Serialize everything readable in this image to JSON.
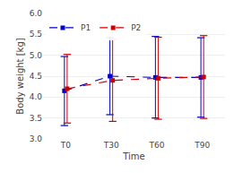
{
  "chart_data": {
    "type": "line",
    "xlabel": "Time",
    "ylabel": "Body weight [kg]",
    "categories": [
      "T0",
      "T30",
      "T60",
      "T90"
    ],
    "series": [
      {
        "name": "P1",
        "color": "#0000cc",
        "line_style": "dashed",
        "marker": "square",
        "values": [
          4.15,
          4.5,
          4.47,
          4.47
        ],
        "upper": [
          4.97,
          5.42,
          5.45,
          5.42
        ],
        "lower": [
          3.32,
          3.58,
          3.5,
          3.52
        ]
      },
      {
        "name": "P2",
        "color": "#cc0000",
        "line_style": "dashed",
        "marker": "square",
        "values": [
          4.2,
          4.4,
          4.45,
          4.48
        ],
        "upper": [
          5.02,
          5.38,
          5.43,
          5.47
        ],
        "lower": [
          3.38,
          3.42,
          3.47,
          3.49
        ]
      }
    ],
    "ylim": [
      3.0,
      6.0
    ],
    "yticks": [
      {
        "value": 3.0,
        "label": "3.0"
      },
      3.5,
      {
        "value": 4.0,
        "label": "4.0"
      },
      4.5,
      {
        "value": 5.0,
        "label": "5.0"
      },
      5.5,
      {
        "value": 6.0,
        "label": "6.0"
      }
    ],
    "grid": true,
    "legend": "upper left"
  }
}
